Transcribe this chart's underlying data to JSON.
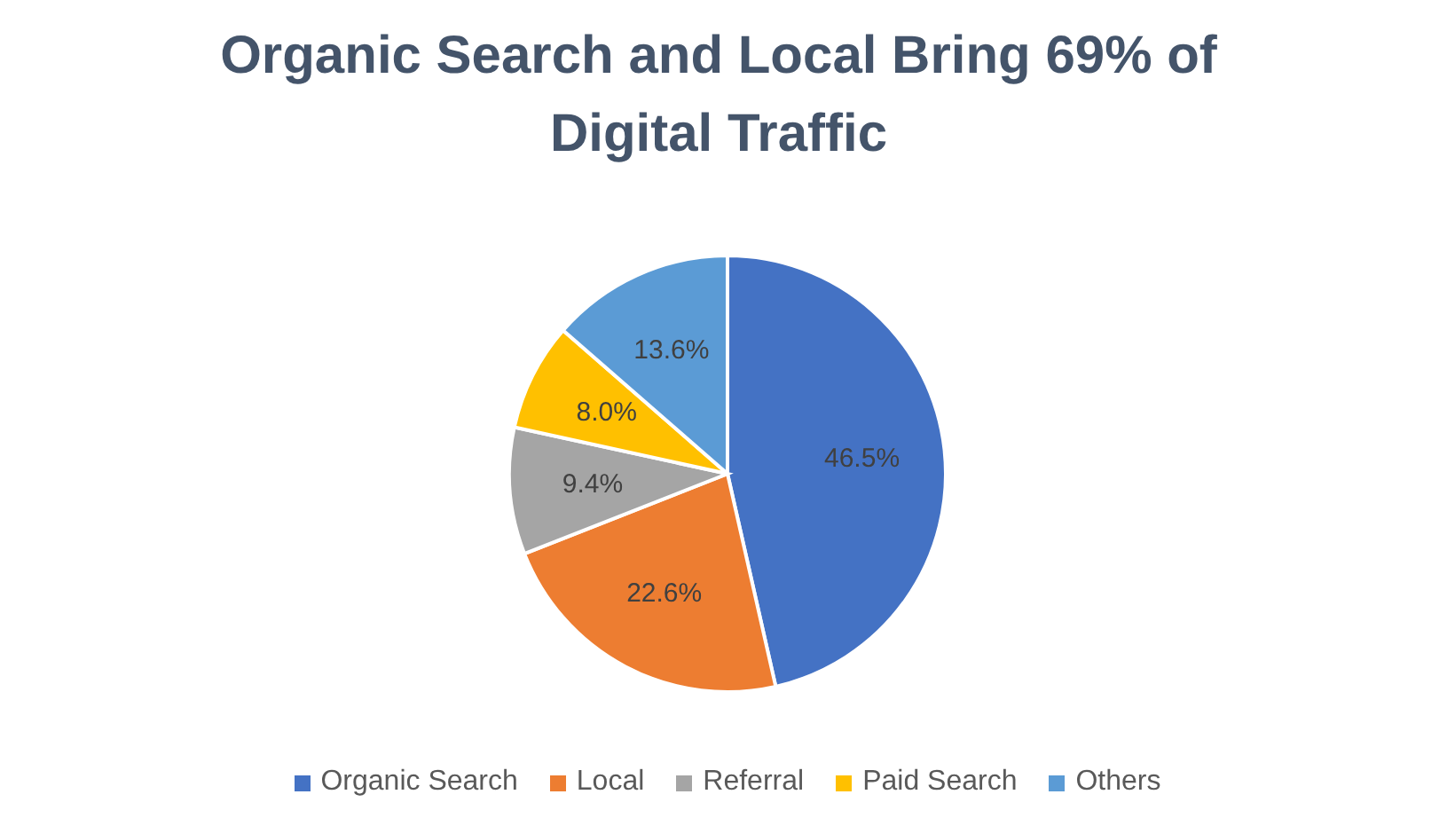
{
  "chart_data": {
    "type": "pie",
    "title": "Organic Search and Local Bring 69% of Digital Traffic",
    "categories": [
      "Organic Search",
      "Local",
      "Referral",
      "Paid Search",
      "Others"
    ],
    "values": [
      46.5,
      22.6,
      9.4,
      8.0,
      13.6
    ],
    "colors": [
      "#4472c4",
      "#ed7d31",
      "#a5a5a5",
      "#ffc000",
      "#5b9bd5"
    ],
    "value_labels": [
      "46.5%",
      "22.6%",
      "9.4%",
      "8.0%",
      "13.6%"
    ],
    "legend": "bottom"
  }
}
